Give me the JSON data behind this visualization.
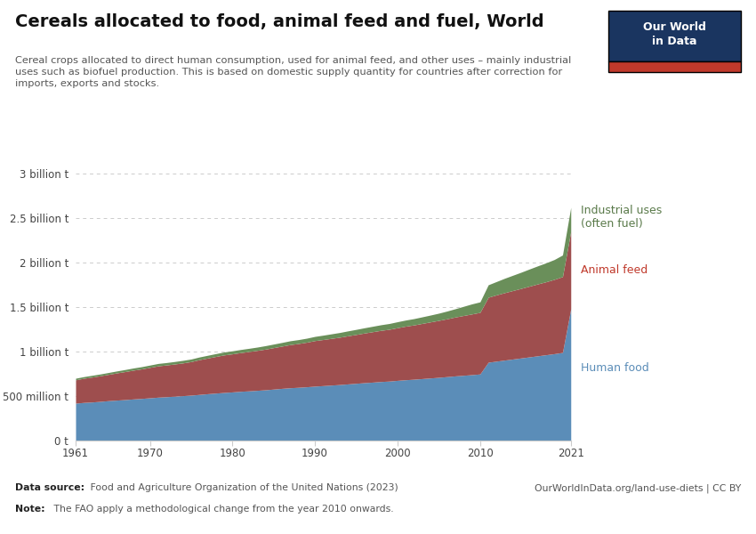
{
  "title": "Cereals allocated to food, animal feed and fuel, World",
  "subtitle": "Cereal crops allocated to direct human consumption, used for animal feed, and other uses – mainly industrial\nuses such as biofuel production. This is based on domestic supply quantity for countries after correction for\nimports, exports and stocks.",
  "years": [
    1961,
    1962,
    1963,
    1964,
    1965,
    1966,
    1967,
    1968,
    1969,
    1970,
    1971,
    1972,
    1973,
    1974,
    1975,
    1976,
    1977,
    1978,
    1979,
    1980,
    1981,
    1982,
    1983,
    1984,
    1985,
    1986,
    1987,
    1988,
    1989,
    1990,
    1991,
    1992,
    1993,
    1994,
    1995,
    1996,
    1997,
    1998,
    1999,
    2000,
    2001,
    2002,
    2003,
    2004,
    2005,
    2006,
    2007,
    2008,
    2009,
    2010,
    2011,
    2012,
    2013,
    2014,
    2015,
    2016,
    2017,
    2018,
    2019,
    2020,
    2021
  ],
  "human_food": [
    420,
    428,
    433,
    440,
    448,
    454,
    460,
    467,
    473,
    480,
    487,
    492,
    498,
    504,
    510,
    518,
    526,
    533,
    540,
    546,
    553,
    558,
    564,
    570,
    578,
    586,
    593,
    598,
    604,
    611,
    617,
    623,
    629,
    636,
    643,
    650,
    656,
    663,
    668,
    676,
    683,
    689,
    696,
    703,
    710,
    718,
    726,
    733,
    740,
    748,
    880,
    892,
    904,
    916,
    928,
    940,
    952,
    964,
    976,
    990,
    1480
  ],
  "animal_feed": [
    262,
    272,
    280,
    288,
    296,
    306,
    315,
    324,
    332,
    342,
    352,
    357,
    362,
    368,
    377,
    391,
    401,
    412,
    422,
    428,
    435,
    442,
    449,
    457,
    466,
    475,
    485,
    492,
    501,
    512,
    518,
    525,
    532,
    541,
    549,
    558,
    567,
    575,
    582,
    592,
    602,
    610,
    620,
    630,
    640,
    650,
    662,
    672,
    682,
    692,
    730,
    745,
    758,
    770,
    782,
    795,
    808,
    820,
    835,
    852,
    870
  ],
  "industrial_uses": [
    18,
    18,
    20,
    20,
    21,
    22,
    23,
    24,
    25,
    26,
    27,
    27,
    28,
    29,
    29,
    30,
    31,
    32,
    33,
    34,
    35,
    36,
    37,
    39,
    40,
    41,
    43,
    44,
    45,
    47,
    49,
    51,
    53,
    55,
    57,
    59,
    61,
    63,
    65,
    67,
    69,
    71,
    74,
    77,
    81,
    87,
    93,
    103,
    113,
    118,
    140,
    150,
    162,
    172,
    182,
    193,
    203,
    213,
    223,
    243,
    270
  ],
  "color_human": "#5b8db8",
  "color_feed": "#9e4e4e",
  "color_industrial": "#6a8f5a",
  "ytick_labels": [
    "0 t",
    "500 million t",
    "1 billion t",
    "1.5 billion t",
    "2 billion t",
    "2.5 billion t",
    "3 billion t"
  ],
  "ytick_values": [
    0,
    500,
    1000,
    1500,
    2000,
    2500,
    3000
  ],
  "xtick_years": [
    1961,
    1970,
    1980,
    1990,
    2000,
    2010,
    2021
  ],
  "label_human_color": "#5b8db8",
  "label_feed_color": "#c0392b",
  "label_industrial_color": "#5a7a4a",
  "datasource_bold": "Data source:",
  "datasource_rest": " Food and Agriculture Organization of the United Nations (2023)",
  "note_bold": "Note:",
  "note_rest": " The FAO apply a methodological change from the year 2010 onwards.",
  "url": "OurWorldInData.org/land-use-diets | CC BY",
  "owid_box_color": "#1a3560",
  "owid_box_red": "#c0392b"
}
